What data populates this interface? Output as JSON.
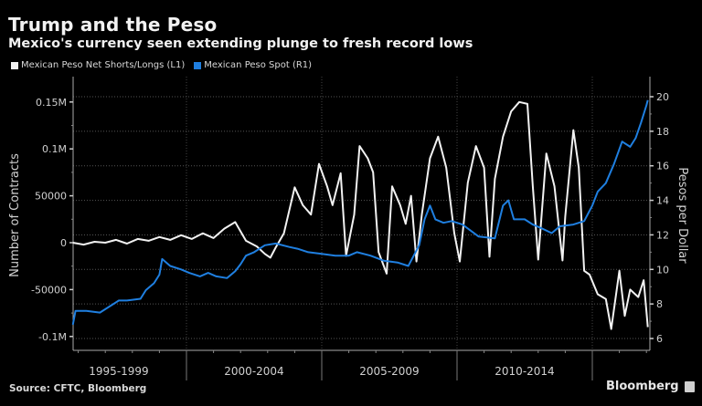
{
  "header": {
    "title": "Trump and the Peso",
    "subtitle": "Mexico's currency seen extending plunge to fresh record lows"
  },
  "footer": {
    "source": "Source: CFTC, Bloomberg",
    "brand": "Bloomberg"
  },
  "chart_data": {
    "type": "line",
    "title": "Trump and the Peso",
    "subtitle": "Mexico's currency seen extending plunge to fresh record lows",
    "legend_position": "top-left",
    "grid": true,
    "x_range": [
      1995.8,
      2017.1
    ],
    "x_categories": [
      "1995-1999",
      "2000-2004",
      "2005-2009",
      "2010-2014"
    ],
    "x_category_bounds": [
      2000,
      2005,
      2010,
      2015
    ],
    "y_left": {
      "label": "Number of Contracts",
      "range": [
        -105000,
        160000
      ],
      "ticks": [
        -100000,
        -50000,
        0,
        50000,
        100000,
        150000
      ],
      "tick_labels": [
        "-0.1M",
        "-50000",
        "0",
        "50000",
        "0.1M",
        "0.15M"
      ]
    },
    "y_right": {
      "label": "Pesos per Dollar",
      "range": [
        5.8,
        20.9
      ],
      "ticks": [
        6,
        8,
        10,
        12,
        14,
        16,
        18,
        20
      ],
      "tick_labels": [
        "6",
        "8",
        "10",
        "12",
        "14",
        "16",
        "18",
        "20"
      ]
    },
    "series": [
      {
        "name": "Mexican Peso Net  Shorts/Longs (L1)",
        "axis": "left",
        "color": "#f2f2f2",
        "x": [
          1995.8,
          1996.2,
          1996.6,
          1997.0,
          1997.4,
          1997.8,
          1998.2,
          1998.6,
          1999.0,
          1999.4,
          1999.8,
          2000.2,
          2000.6,
          2001.0,
          2001.4,
          2001.8,
          2002.2,
          2002.6,
          2002.9,
          2003.1,
          2003.3,
          2003.6,
          2004.0,
          2004.3,
          2004.6,
          2004.9,
          2005.2,
          2005.4,
          2005.7,
          2005.9,
          2006.2,
          2006.4,
          2006.7,
          2006.9,
          2007.1,
          2007.4,
          2007.6,
          2007.9,
          2008.1,
          2008.3,
          2008.5,
          2008.7,
          2009.0,
          2009.3,
          2009.6,
          2009.9,
          2010.1,
          2010.4,
          2010.7,
          2011.0,
          2011.2,
          2011.4,
          2011.7,
          2012.0,
          2012.3,
          2012.6,
          2012.8,
          2013.0,
          2013.3,
          2013.6,
          2013.9,
          2014.0,
          2014.3,
          2014.5,
          2014.7,
          2014.9,
          2015.2,
          2015.5,
          2015.7,
          2016.0,
          2016.2,
          2016.4,
          2016.7,
          2016.9,
          2017.05
        ],
        "values": [
          0,
          -2000,
          1000,
          0,
          3000,
          -1000,
          4000,
          2000,
          6000,
          3000,
          8000,
          4000,
          10000,
          5000,
          15000,
          22000,
          2000,
          -4000,
          -12000,
          -16000,
          -5000,
          10000,
          59000,
          40000,
          30000,
          84000,
          60000,
          40000,
          74000,
          -14000,
          30000,
          103000,
          90000,
          75000,
          -10000,
          -33000,
          60000,
          40000,
          20000,
          50000,
          -20000,
          30000,
          90000,
          113000,
          80000,
          10000,
          -20000,
          64000,
          103000,
          80000,
          -15000,
          68000,
          113000,
          140000,
          150000,
          148000,
          60000,
          -18000,
          95000,
          60000,
          -19000,
          28000,
          120000,
          80000,
          -30000,
          -34000,
          -55000,
          -60000,
          -92000,
          -30000,
          -78000,
          -50000,
          -58000,
          -40000,
          -90000
        ]
      },
      {
        "name": "Mexican Peso Spot  (R1)",
        "axis": "right",
        "color": "#1f7fe0",
        "x": [
          1995.8,
          1995.9,
          1996.3,
          1996.8,
          1997.5,
          1997.8,
          1998.3,
          1998.5,
          1998.8,
          1999.0,
          1999.1,
          1999.4,
          1999.8,
          2000.1,
          2000.5,
          2000.8,
          2001.1,
          2001.5,
          2001.8,
          2002.0,
          2002.2,
          2002.5,
          2002.9,
          2003.3,
          2003.8,
          2004.1,
          2004.5,
          2005.0,
          2005.5,
          2006.0,
          2006.3,
          2006.8,
          2007.3,
          2007.8,
          2008.2,
          2008.6,
          2008.8,
          2009.0,
          2009.2,
          2009.5,
          2009.8,
          2010.2,
          2010.8,
          2011.4,
          2011.7,
          2011.9,
          2012.1,
          2012.5,
          2012.8,
          2013.1,
          2013.5,
          2013.8,
          2014.3,
          2014.7,
          2015.0,
          2015.2,
          2015.5,
          2015.8,
          2016.1,
          2016.4,
          2016.6,
          2016.8,
          2017.0,
          2017.05
        ],
        "values": [
          6.8,
          7.6,
          7.6,
          7.5,
          8.2,
          8.2,
          8.3,
          8.8,
          9.2,
          9.7,
          10.6,
          10.2,
          10.0,
          9.8,
          9.6,
          9.8,
          9.6,
          9.5,
          9.9,
          10.3,
          10.8,
          11.0,
          11.4,
          11.5,
          11.3,
          11.2,
          11.0,
          10.9,
          10.8,
          10.8,
          11.0,
          10.8,
          10.5,
          10.4,
          10.2,
          11.4,
          12.9,
          13.7,
          12.9,
          12.7,
          12.8,
          12.6,
          11.9,
          11.8,
          13.7,
          14.0,
          12.9,
          12.9,
          12.6,
          12.4,
          12.1,
          12.5,
          12.6,
          12.8,
          13.7,
          14.5,
          15.0,
          16.1,
          17.4,
          17.1,
          17.6,
          18.5,
          19.5,
          19.8
        ]
      }
    ]
  }
}
